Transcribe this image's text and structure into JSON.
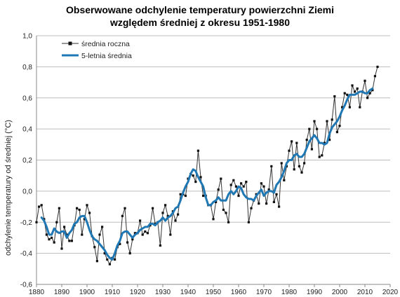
{
  "chart_data": {
    "type": "line",
    "title_line1": "Obserwowane odchylenie temperatury powierzchni Ziemi",
    "title_line2": "względem średniej z okresu 1951-1980",
    "xlabel": "",
    "ylabel": "odchylenie temperatury od średniej (°C)",
    "xlim": [
      1880,
      2020
    ],
    "ylim": [
      -0.6,
      1.0
    ],
    "xticks": [
      1880,
      1890,
      1900,
      1910,
      1920,
      1930,
      1940,
      1950,
      1960,
      1970,
      1980,
      1990,
      2000,
      2010,
      2020
    ],
    "yticks": [
      -0.6,
      -0.4,
      -0.2,
      0.0,
      0.2,
      0.4,
      0.6,
      0.8,
      1.0
    ],
    "ytick_labels": [
      "-0,6",
      "-0,4",
      "-0,2",
      "0,0",
      "0,2",
      "0,4",
      "0,6",
      "0,8",
      "1,0"
    ],
    "grid": true,
    "legend_position": "top-left",
    "series": [
      {
        "name": "średnia roczna",
        "color": "#333333",
        "marker": "square",
        "x": [
          1880,
          1881,
          1882,
          1883,
          1884,
          1885,
          1886,
          1887,
          1888,
          1889,
          1890,
          1891,
          1892,
          1893,
          1894,
          1895,
          1896,
          1897,
          1898,
          1899,
          1900,
          1901,
          1902,
          1903,
          1904,
          1905,
          1906,
          1907,
          1908,
          1909,
          1910,
          1911,
          1912,
          1913,
          1914,
          1915,
          1916,
          1917,
          1918,
          1919,
          1920,
          1921,
          1922,
          1923,
          1924,
          1925,
          1926,
          1927,
          1928,
          1929,
          1930,
          1931,
          1932,
          1933,
          1934,
          1935,
          1936,
          1937,
          1938,
          1939,
          1940,
          1941,
          1942,
          1943,
          1944,
          1945,
          1946,
          1947,
          1948,
          1949,
          1950,
          1951,
          1952,
          1953,
          1954,
          1955,
          1956,
          1957,
          1958,
          1959,
          1960,
          1961,
          1962,
          1963,
          1964,
          1965,
          1966,
          1967,
          1968,
          1969,
          1970,
          1971,
          1972,
          1973,
          1974,
          1975,
          1976,
          1977,
          1978,
          1979,
          1980,
          1981,
          1982,
          1983,
          1984,
          1985,
          1986,
          1987,
          1988,
          1989,
          1990,
          1991,
          1992,
          1993,
          1994,
          1995,
          1996,
          1997,
          1998,
          1999,
          2000,
          2001,
          2002,
          2003,
          2004,
          2005,
          2006,
          2007,
          2008,
          2009,
          2010,
          2011,
          2012,
          2013,
          2014,
          2015
        ],
        "values": [
          -0.2,
          -0.1,
          -0.09,
          -0.18,
          -0.28,
          -0.31,
          -0.3,
          -0.33,
          -0.2,
          -0.11,
          -0.37,
          -0.23,
          -0.28,
          -0.32,
          -0.32,
          -0.22,
          -0.11,
          -0.12,
          -0.28,
          -0.18,
          -0.09,
          -0.14,
          -0.29,
          -0.36,
          -0.45,
          -0.28,
          -0.23,
          -0.4,
          -0.44,
          -0.47,
          -0.43,
          -0.44,
          -0.36,
          -0.34,
          -0.16,
          -0.11,
          -0.33,
          -0.4,
          -0.31,
          -0.27,
          -0.27,
          -0.19,
          -0.28,
          -0.26,
          -0.27,
          -0.22,
          -0.11,
          -0.21,
          -0.2,
          -0.35,
          -0.14,
          -0.09,
          -0.16,
          -0.28,
          -0.13,
          -0.19,
          -0.15,
          -0.02,
          -0.02,
          -0.03,
          0.08,
          0.11,
          0.1,
          0.06,
          0.26,
          0.09,
          -0.03,
          -0.03,
          -0.09,
          -0.09,
          -0.18,
          -0.07,
          0.01,
          0.08,
          -0.12,
          -0.14,
          -0.2,
          0.04,
          0.07,
          0.03,
          -0.03,
          0.05,
          0.03,
          0.06,
          -0.2,
          -0.11,
          -0.06,
          -0.02,
          -0.08,
          0.05,
          0.03,
          -0.08,
          0.01,
          0.16,
          -0.07,
          -0.02,
          -0.1,
          0.18,
          0.07,
          0.16,
          0.26,
          0.32,
          0.14,
          0.31,
          0.16,
          0.12,
          0.18,
          0.33,
          0.4,
          0.27,
          0.45,
          0.4,
          0.22,
          0.23,
          0.31,
          0.45,
          0.33,
          0.46,
          0.61,
          0.38,
          0.42,
          0.54,
          0.63,
          0.62,
          0.54,
          0.68,
          0.64,
          0.66,
          0.54,
          0.64,
          0.71,
          0.6,
          0.63,
          0.65,
          0.74,
          0.8
        ]
      },
      {
        "name": "5-letnia średnia",
        "color": "#1f77b4",
        "x": [
          1882,
          1883,
          1884,
          1885,
          1886,
          1887,
          1888,
          1889,
          1890,
          1891,
          1892,
          1893,
          1894,
          1895,
          1896,
          1897,
          1898,
          1899,
          1900,
          1901,
          1902,
          1903,
          1904,
          1905,
          1906,
          1907,
          1908,
          1909,
          1910,
          1911,
          1912,
          1913,
          1914,
          1915,
          1916,
          1917,
          1918,
          1919,
          1920,
          1921,
          1922,
          1923,
          1924,
          1925,
          1926,
          1927,
          1928,
          1929,
          1930,
          1931,
          1932,
          1933,
          1934,
          1935,
          1936,
          1937,
          1938,
          1939,
          1940,
          1941,
          1942,
          1943,
          1944,
          1945,
          1946,
          1947,
          1948,
          1949,
          1950,
          1951,
          1952,
          1953,
          1954,
          1955,
          1956,
          1957,
          1958,
          1959,
          1960,
          1961,
          1962,
          1963,
          1964,
          1965,
          1966,
          1967,
          1968,
          1969,
          1970,
          1971,
          1972,
          1973,
          1974,
          1975,
          1976,
          1977,
          1978,
          1979,
          1980,
          1981,
          1982,
          1983,
          1984,
          1985,
          1986,
          1987,
          1988,
          1989,
          1990,
          1991,
          1992,
          1993,
          1994,
          1995,
          1996,
          1997,
          1998,
          1999,
          2000,
          2001,
          2002,
          2003,
          2004,
          2005,
          2006,
          2007,
          2008,
          2009,
          2010,
          2011,
          2012,
          2013
        ],
        "values": [
          -0.17,
          -0.19,
          -0.23,
          -0.28,
          -0.28,
          -0.24,
          -0.26,
          -0.27,
          -0.26,
          -0.26,
          -0.3,
          -0.27,
          -0.25,
          -0.21,
          -0.2,
          -0.17,
          -0.16,
          -0.16,
          -0.2,
          -0.25,
          -0.29,
          -0.31,
          -0.32,
          -0.34,
          -0.36,
          -0.38,
          -0.41,
          -0.43,
          -0.44,
          -0.4,
          -0.35,
          -0.32,
          -0.27,
          -0.26,
          -0.26,
          -0.28,
          -0.3,
          -0.28,
          -0.27,
          -0.25,
          -0.24,
          -0.23,
          -0.23,
          -0.21,
          -0.21,
          -0.22,
          -0.2,
          -0.19,
          -0.17,
          -0.19,
          -0.17,
          -0.16,
          -0.14,
          -0.11,
          -0.1,
          -0.06,
          -0.01,
          0.03,
          0.06,
          0.11,
          0.14,
          0.13,
          0.09,
          0.06,
          0.03,
          -0.04,
          -0.09,
          -0.09,
          -0.07,
          -0.06,
          -0.04,
          -0.06,
          -0.06,
          -0.06,
          -0.02,
          0.0,
          -0.02,
          0.0,
          0.03,
          0.02,
          -0.02,
          -0.04,
          -0.05,
          -0.05,
          -0.06,
          -0.03,
          -0.01,
          0.01,
          -0.03,
          -0.01,
          0.0,
          0.0,
          -0.01,
          0.04,
          0.06,
          0.09,
          0.13,
          0.18,
          0.2,
          0.2,
          0.23,
          0.24,
          0.22,
          0.22,
          0.24,
          0.28,
          0.32,
          0.34,
          0.36,
          0.34,
          0.31,
          0.31,
          0.3,
          0.31,
          0.37,
          0.41,
          0.43,
          0.45,
          0.48,
          0.52,
          0.55,
          0.59,
          0.62,
          0.62,
          0.62,
          0.63,
          0.64,
          0.64,
          0.63,
          0.63,
          0.65,
          0.66
        ]
      }
    ]
  }
}
